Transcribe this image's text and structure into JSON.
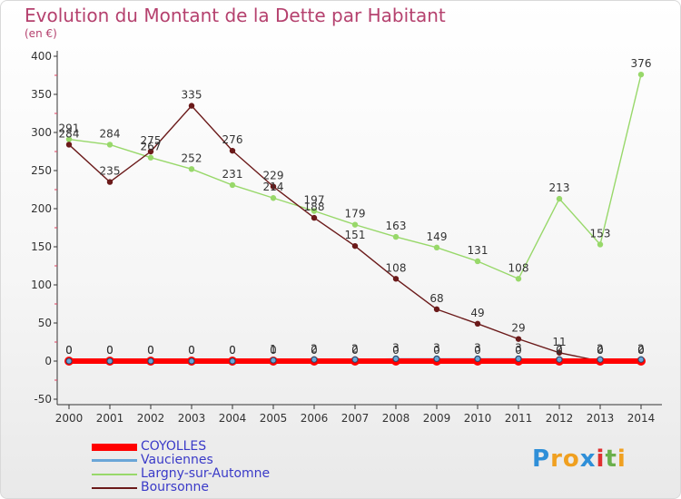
{
  "chart_data": {
    "type": "line",
    "title": "Evolution du Montant de la Dette par Habitant",
    "subtitle": "(en €)",
    "x": [
      "2000",
      "2001",
      "2002",
      "2003",
      "2004",
      "2005",
      "2006",
      "2007",
      "2008",
      "2009",
      "2010",
      "2011",
      "2012",
      "2013",
      "2014"
    ],
    "ylim": [
      -50,
      400
    ],
    "yticks": [
      -50,
      0,
      50,
      100,
      150,
      200,
      250,
      300,
      350,
      400
    ],
    "grid": false,
    "legend_position": "bottom-left",
    "series": [
      {
        "name": "COYOLLES",
        "color": "#ff0000",
        "values": [
          0,
          0,
          0,
          0,
          0,
          0,
          0,
          0,
          0,
          0,
          0,
          0,
          0,
          0,
          0
        ],
        "labels": [
          "0",
          "0",
          "0",
          "0",
          "0",
          "0",
          "0",
          "0",
          "0",
          "0",
          "0",
          "0",
          "0",
          "0",
          "0"
        ]
      },
      {
        "name": "Vauciennes",
        "color": "#6aa6d8",
        "values": [
          0,
          0,
          0,
          0,
          0,
          1,
          2,
          2,
          3,
          3,
          3,
          3,
          2,
          2,
          2
        ],
        "labels": [
          "0",
          "0",
          "0",
          "0",
          "0",
          "1",
          "2",
          "2",
          "3",
          "3",
          "3",
          "3",
          "2",
          "2",
          "2"
        ]
      },
      {
        "name": "Largny-sur-Automne",
        "color": "#98d86a",
        "values": [
          291,
          284,
          267,
          252,
          231,
          214,
          197,
          179,
          163,
          149,
          131,
          108,
          213,
          153,
          376
        ],
        "labels": [
          "291",
          "284",
          "267",
          "252",
          "231",
          "214",
          "197",
          "179",
          "163",
          "149",
          "131",
          "108",
          "213",
          "153",
          "376"
        ]
      },
      {
        "name": "Boursonne",
        "color": "#6b1a1a",
        "values": [
          284,
          235,
          275,
          335,
          276,
          229,
          188,
          151,
          108,
          68,
          49,
          29,
          11,
          0,
          0
        ],
        "labels": [
          "284",
          "235",
          "275",
          "335",
          "276",
          "229",
          "188",
          "151",
          "108",
          "68",
          "49",
          "29",
          "11",
          "0",
          "0"
        ]
      }
    ]
  },
  "logo": {
    "letters": [
      "P",
      "r",
      "o",
      "x",
      "i",
      "t",
      "i"
    ],
    "colors": [
      "#2f8fd8",
      "#f0a020",
      "#f0a020",
      "#2f8fd8",
      "#e03030",
      "#6ab04c",
      "#f0a020"
    ]
  }
}
